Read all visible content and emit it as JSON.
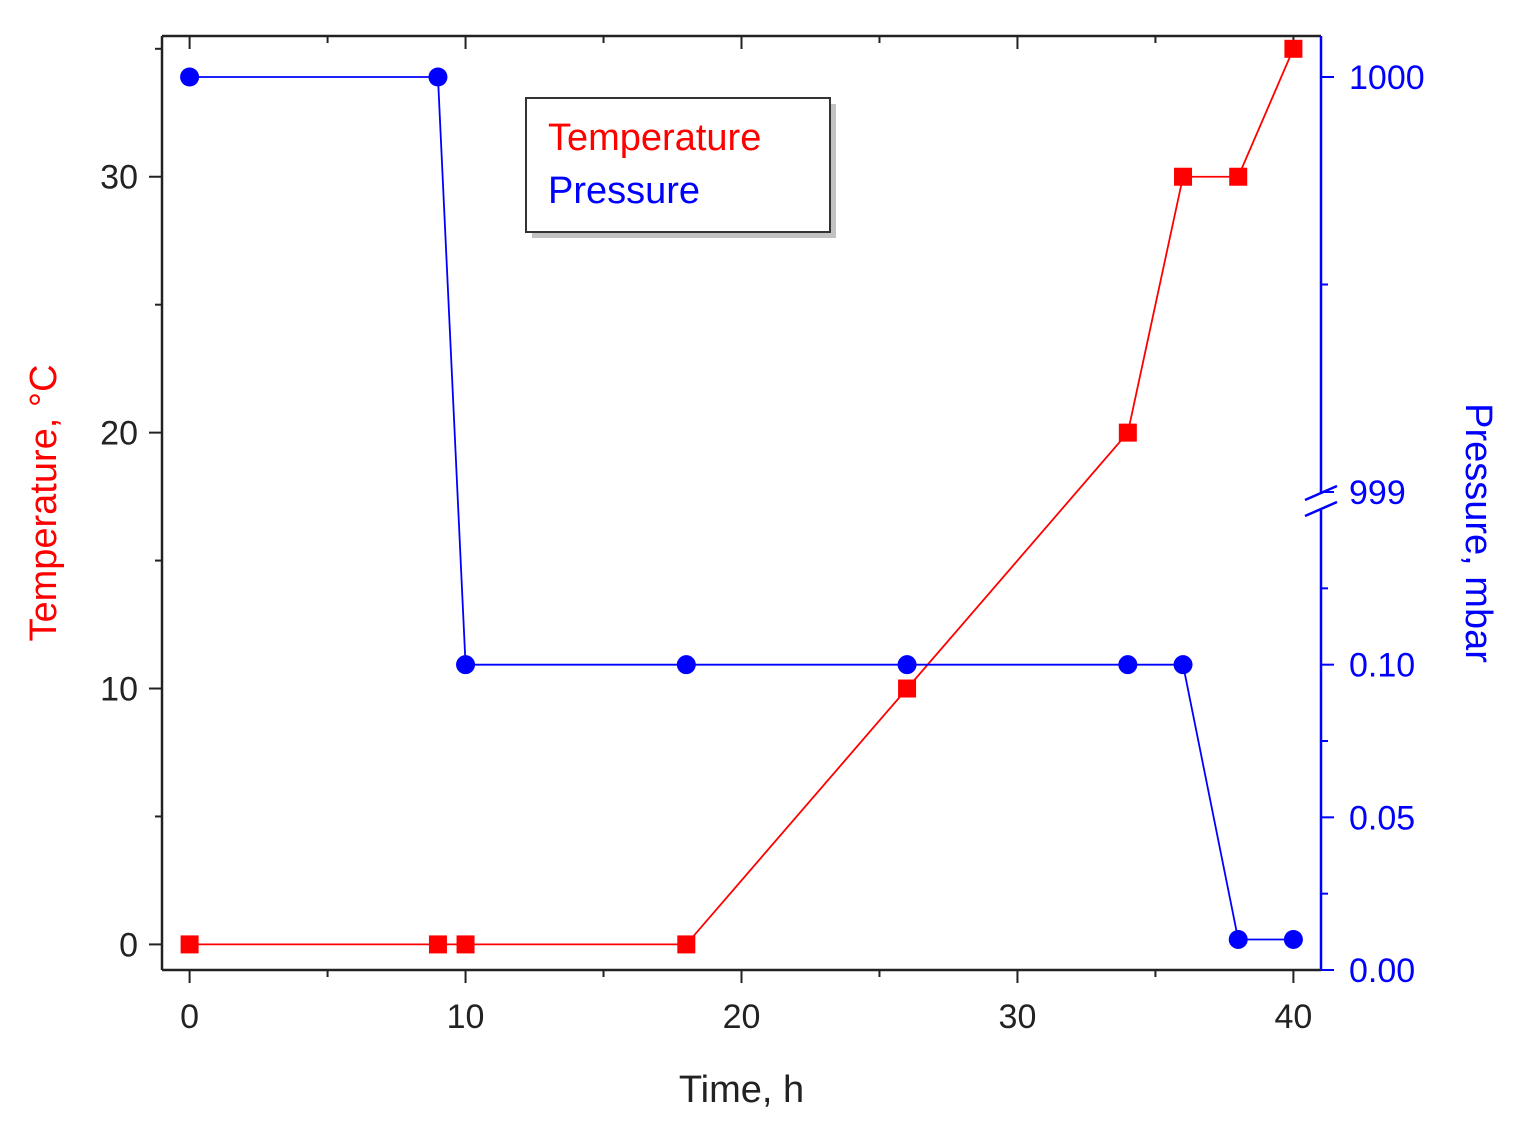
{
  "chart_data": {
    "type": "line",
    "title": "",
    "xlabel": "Time, h",
    "ylabel_left": "Temperature, °C",
    "ylabel_right": "Pressure, mbar",
    "xlim": [
      -1,
      41
    ],
    "ylim_left": [
      -1,
      35.5
    ],
    "x_ticks": [
      0,
      10,
      20,
      30,
      40
    ],
    "left_ticks": [
      0,
      10,
      20,
      30
    ],
    "right_axis": {
      "lower_segment": {
        "range": [
          0,
          0.15
        ],
        "ticks": [
          0.0,
          0.05,
          0.1
        ],
        "tick_labels": [
          "0.00",
          "0.05",
          "0.10"
        ]
      },
      "upper_segment": {
        "range": [
          999,
          1000
        ],
        "ticks": [
          999,
          1000
        ],
        "tick_labels": [
          "999",
          "1000"
        ]
      },
      "break": true
    },
    "legend_position": "top-center",
    "colors": {
      "temperature": "#ff0000",
      "pressure": "#0000ff",
      "axis": "#222222",
      "right_axis": "#0000ff"
    },
    "series": [
      {
        "name": "Temperature",
        "axis": "left",
        "marker": "square",
        "x": [
          0,
          9,
          10,
          18,
          26,
          34,
          36,
          38,
          40
        ],
        "y": [
          0,
          0,
          0,
          0,
          10,
          20,
          30,
          30,
          35
        ]
      },
      {
        "name": "Pressure",
        "axis": "right",
        "marker": "circle",
        "x": [
          0,
          9,
          10,
          18,
          26,
          34,
          36,
          38,
          40
        ],
        "y": [
          1000,
          1000,
          0.1,
          0.1,
          0.1,
          0.1,
          0.1,
          0.01,
          0.01
        ]
      }
    ]
  }
}
